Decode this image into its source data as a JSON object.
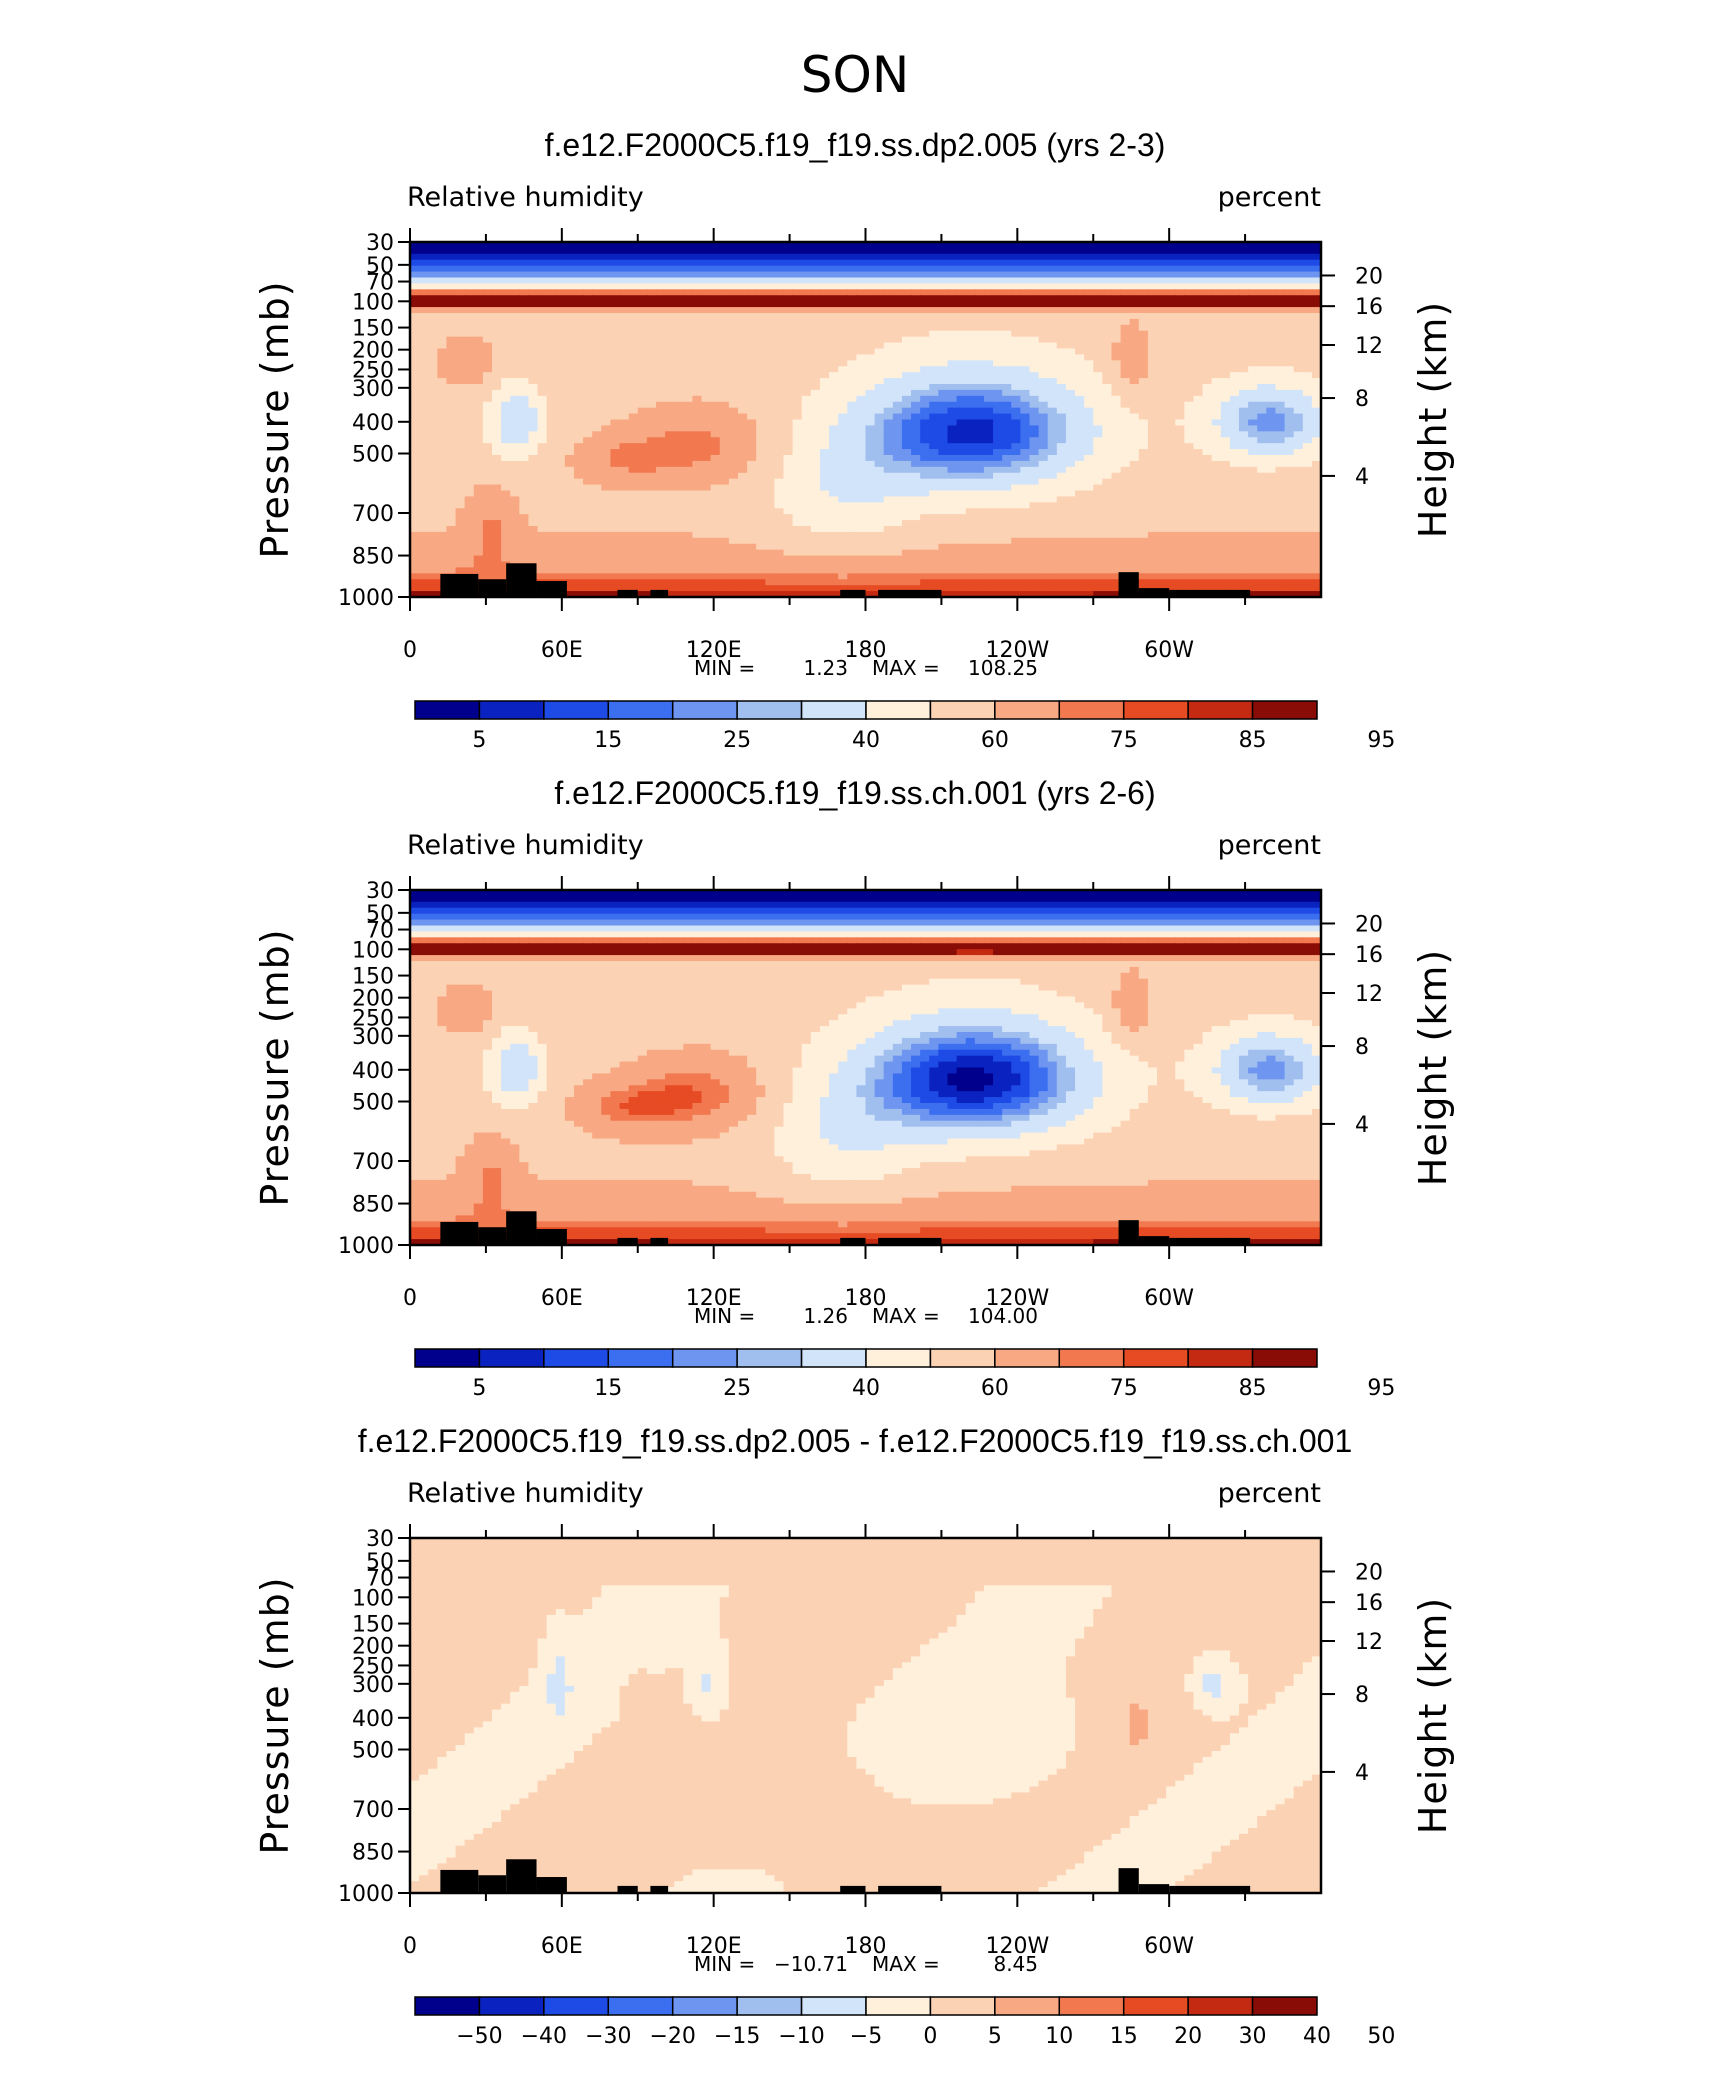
{
  "figure": {
    "title": "SON",
    "background": "#ffffff",
    "mask_color": "#000000"
  },
  "chart_data": [
    {
      "type": "heatmap",
      "title": "f.e12.F2000C5.f19_f19.ss.dp2.005 (yrs 2-3)",
      "variable": "Relative humidity",
      "units": "percent",
      "ylabel": "Pressure (mb)",
      "y2label": "Height (km)",
      "x_ticks": [
        "0",
        "60E",
        "120E",
        "180",
        "120W",
        "60W"
      ],
      "y_ticks": [
        "30",
        "50",
        "70",
        "100",
        "150",
        "200",
        "250",
        "300",
        "400",
        "500",
        "700",
        "850",
        "1000"
      ],
      "height_ticks": [
        "20",
        "16",
        "12",
        "8",
        "4"
      ],
      "min_label": "MIN =",
      "min_value": "1.23",
      "max_label": "MAX =",
      "max_value": "108.25",
      "min": 1.23,
      "max": 108.25,
      "colorbar_labels": [
        "5",
        "15",
        "25",
        "40",
        "60",
        "75",
        "85",
        "95"
      ],
      "field": "rh_dp2"
    },
    {
      "type": "heatmap",
      "title": "f.e12.F2000C5.f19_f19.ss.ch.001 (yrs 2-6)",
      "variable": "Relative humidity",
      "units": "percent",
      "ylabel": "Pressure (mb)",
      "y2label": "Height (km)",
      "x_ticks": [
        "0",
        "60E",
        "120E",
        "180",
        "120W",
        "60W"
      ],
      "y_ticks": [
        "30",
        "50",
        "70",
        "100",
        "150",
        "200",
        "250",
        "300",
        "400",
        "500",
        "700",
        "850",
        "1000"
      ],
      "height_ticks": [
        "20",
        "16",
        "12",
        "8",
        "4"
      ],
      "min_label": "MIN =",
      "min_value": "1.26",
      "max_label": "MAX =",
      "max_value": "104.00",
      "min": 1.26,
      "max": 104.0,
      "colorbar_labels": [
        "5",
        "15",
        "25",
        "40",
        "60",
        "75",
        "85",
        "95"
      ],
      "field": "rh_ch"
    },
    {
      "type": "heatmap",
      "title": "f.e12.F2000C5.f19_f19.ss.dp2.005 - f.e12.F2000C5.f19_f19.ss.ch.001",
      "variable": "Relative humidity",
      "units": "percent",
      "ylabel": "Pressure (mb)",
      "y2label": "Height (km)",
      "x_ticks": [
        "0",
        "60E",
        "120E",
        "180",
        "120W",
        "60W"
      ],
      "y_ticks": [
        "30",
        "50",
        "70",
        "100",
        "150",
        "200",
        "250",
        "300",
        "400",
        "500",
        "700",
        "850",
        "1000"
      ],
      "height_ticks": [
        "20",
        "16",
        "12",
        "8",
        "4"
      ],
      "min_label": "MIN =",
      "min_value": "−10.71",
      "max_label": "MAX =",
      "max_value": "8.45",
      "min": -10.71,
      "max": 8.45,
      "colorbar_labels": [
        "−50",
        "−40",
        "−30",
        "−20",
        "−15",
        "−10",
        "−5",
        "0",
        "5",
        "10",
        "15",
        "20",
        "30",
        "40",
        "50"
      ],
      "field": "diff"
    }
  ],
  "colormap": [
    "#00008c",
    "#0a23c0",
    "#1e4be6",
    "#3c6ef0",
    "#6e96f0",
    "#a0beee",
    "#d2e4fa",
    "#fff0dc",
    "#fcd2b4",
    "#f8a882",
    "#f27850",
    "#e64b24",
    "#c42a12",
    "#8a0c06"
  ]
}
